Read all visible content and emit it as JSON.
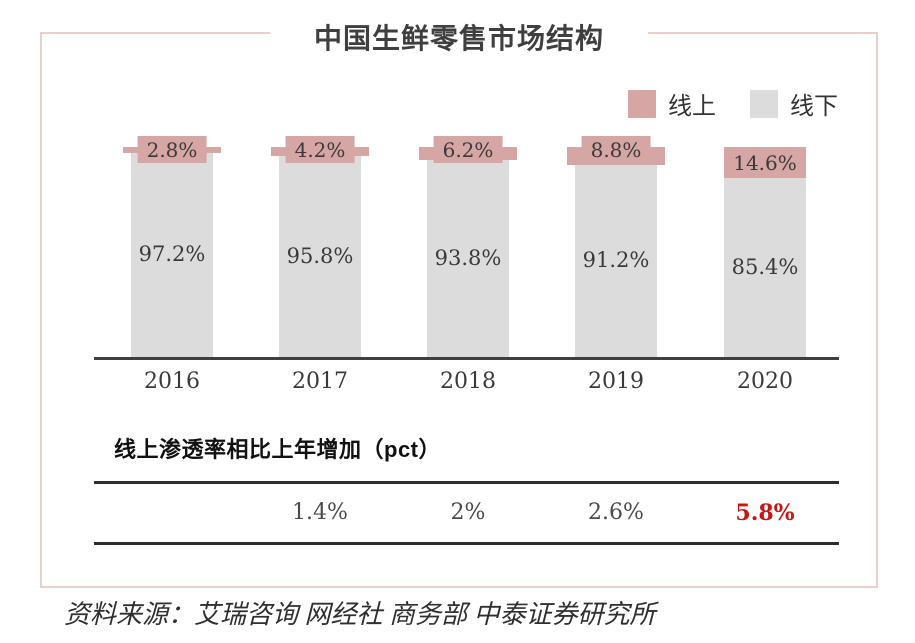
{
  "chart": {
    "title": "中国生鲜零售市场结构",
    "legend": [
      {
        "label": "线上",
        "color": "#d5a6a4"
      },
      {
        "label": "线下",
        "color": "#dcdcdc"
      }
    ]
  },
  "chart_data": {
    "type": "bar",
    "stacked": true,
    "title": "中国生鲜零售市场结构",
    "categories": [
      "2016",
      "2017",
      "2018",
      "2019",
      "2020"
    ],
    "series": [
      {
        "name": "线上",
        "color": "#d5a6a4",
        "values": [
          2.8,
          4.2,
          6.2,
          8.8,
          14.6
        ],
        "labels": [
          "2.8%",
          "4.2%",
          "6.2%",
          "8.8%",
          "14.6%"
        ]
      },
      {
        "name": "线下",
        "color": "#dcdcdc",
        "values": [
          97.2,
          95.8,
          93.8,
          91.2,
          85.4
        ],
        "labels": [
          "97.2%",
          "95.8%",
          "93.8%",
          "91.2%",
          "85.4%"
        ]
      }
    ],
    "ylim": [
      0,
      100
    ],
    "grid": false,
    "legend_position": "top-right",
    "axis_color": "#3f3f3f"
  },
  "penetration_table": {
    "heading": "线上渗透率相比上年增加（pct）",
    "values": [
      "",
      "1.4%",
      "2%",
      "2.6%",
      "5.8%"
    ],
    "highlight_index": 4,
    "highlight_color": "#c81616"
  },
  "footer": {
    "source": "资料来源：艾瑞咨询 网经社 商务部 中泰证券研究所"
  },
  "colors": {
    "online": "#d5a6a4",
    "offline": "#dcdcdc",
    "box_border": "#e9cfcc",
    "axis_line": "#3f3f3f",
    "table_line": "#2e2e2e",
    "highlight_red": "#c81616"
  }
}
